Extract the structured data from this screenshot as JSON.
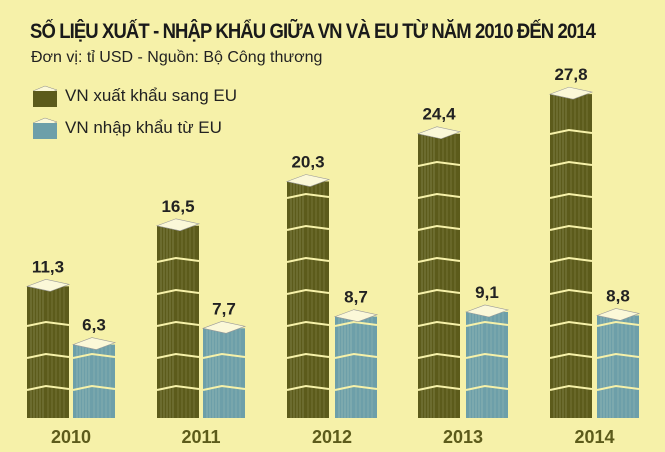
{
  "title": "SỐ LIỆU XUẤT - NHẬP KHẨU GIỮA VN VÀ EU TỪ NĂM 2010 ĐẾN 2014",
  "subtitle": "Đơn vị: tỉ USD - Nguồn: Bộ Công thương",
  "colors": {
    "background": "#f6f1a9",
    "export": "#5c5b1b",
    "import": "#6d9fa9"
  },
  "chart_data": {
    "type": "bar",
    "title": "SỐ LIỆU XUẤT - NHẬP KHẨU GIỮA VN VÀ EU TỪ NĂM 2010 ĐẾN 2014",
    "categories": [
      "2010",
      "2011",
      "2012",
      "2013",
      "2014"
    ],
    "series": [
      {
        "name": "VN xuất khẩu sang EU",
        "values": [
          11.3,
          16.5,
          20.3,
          24.4,
          27.8
        ],
        "labels": [
          "11,3",
          "16,5",
          "20,3",
          "24,4",
          "27,8"
        ]
      },
      {
        "name": "VN nhập khẩu từ EU",
        "values": [
          6.3,
          7.7,
          8.7,
          9.1,
          8.8
        ],
        "labels": [
          "6,3",
          "7,7",
          "8,7",
          "9,1",
          "8,8"
        ]
      }
    ],
    "legend": "top-left",
    "grid": false,
    "ylim": [
      0,
      28
    ]
  }
}
